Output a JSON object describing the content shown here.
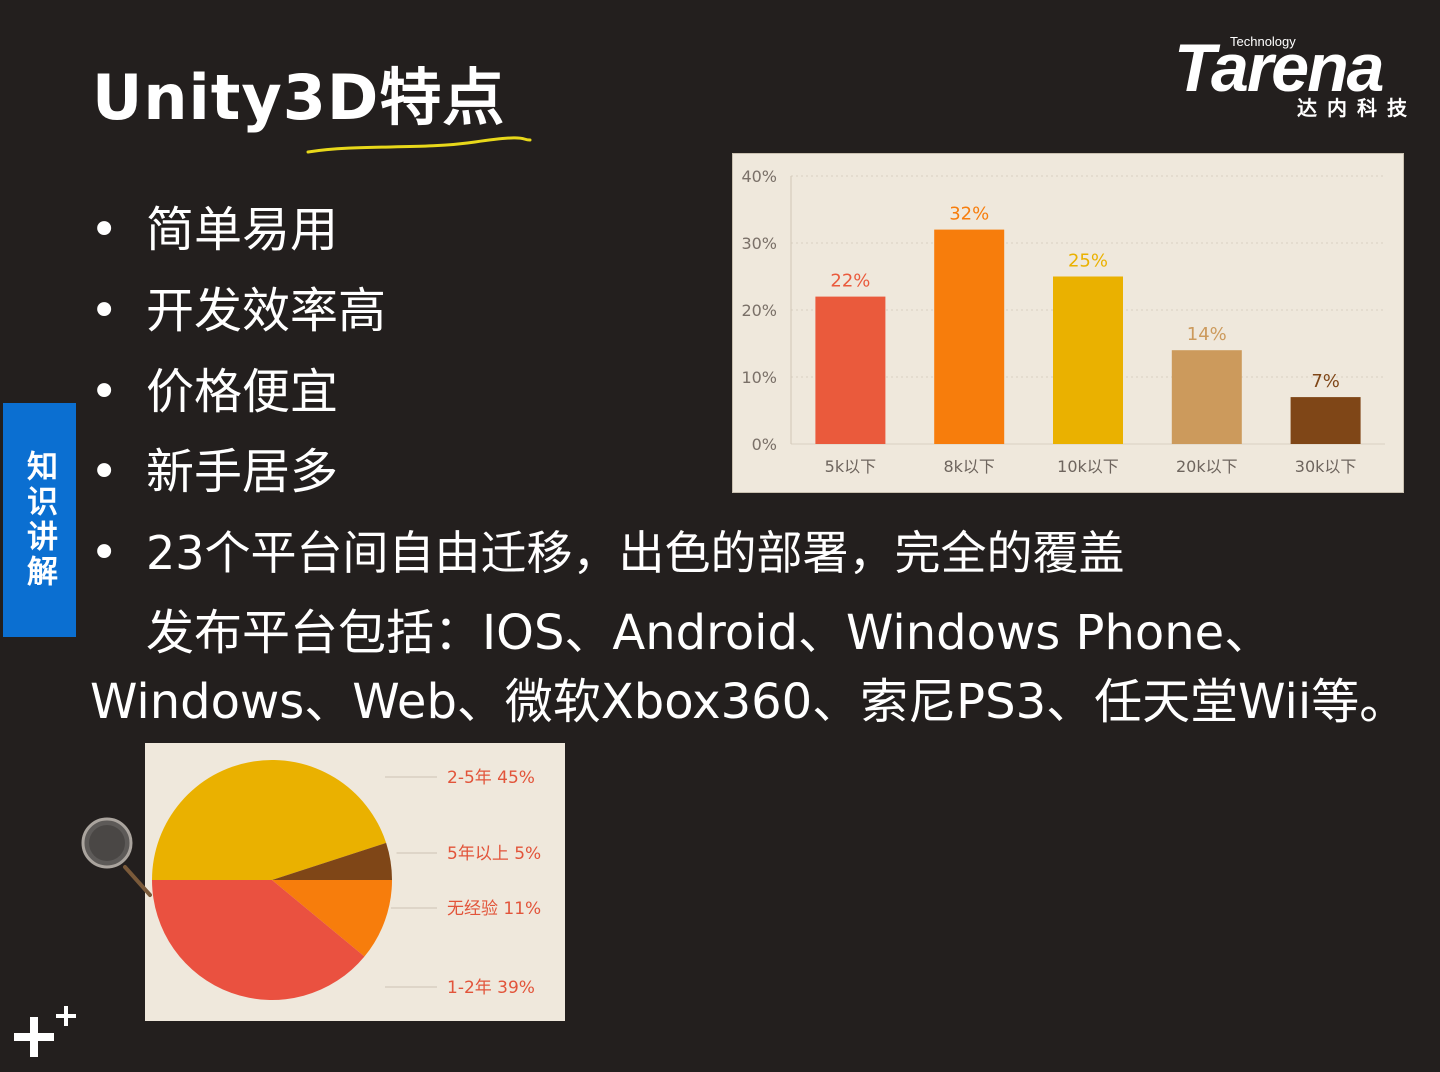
{
  "slide": {
    "title": "Unity3D特点",
    "side_tab": "知识讲解",
    "bullets": [
      "简单易用",
      "开发效率高",
      "价格便宜",
      "新手居多",
      "23个平台间自由迁移，出色的部署，完全的覆盖"
    ],
    "platforms_line1": "发布平台包括：IOS、Android、Windows Phone、",
    "platforms_line2": "Windows、Web、微软Xbox360、索尼PS3、任天堂Wii等。"
  },
  "logo": {
    "technology": "Technology",
    "wordmark": "Tarena",
    "chinese": "达内科技"
  },
  "colors": {
    "background": "#231f1e",
    "side_tab": "#0b6fd1",
    "underline": "#e8d81a"
  },
  "chart_data": [
    {
      "type": "bar",
      "categories": [
        "5k以下",
        "8k以下",
        "10k以下",
        "20k以下",
        "30k以下"
      ],
      "values": [
        22,
        32,
        25,
        14,
        7
      ],
      "value_labels": [
        "22%",
        "32%",
        "25%",
        "14%",
        "7%"
      ],
      "bar_colors": [
        "#ea5a3c",
        "#f77d0c",
        "#eab100",
        "#cc9a5c",
        "#7f4617"
      ],
      "label_colors": [
        "#ea5a3c",
        "#f77d0c",
        "#eab100",
        "#cc9a5c",
        "#7f4617"
      ],
      "y_ticks": [
        "0%",
        "10%",
        "20%",
        "30%",
        "40%"
      ],
      "ylim": [
        0,
        40
      ],
      "grid": true
    },
    {
      "type": "pie",
      "labels": [
        "2-5年  45%",
        "5年以上  5%",
        "无经验  11%",
        "1-2年  39%"
      ],
      "values": [
        45,
        5,
        11,
        39
      ],
      "slice_colors": [
        "#eab100",
        "#7f4617",
        "#f77d0c",
        "#ea5140"
      ],
      "label_color": "#e2543a"
    }
  ]
}
